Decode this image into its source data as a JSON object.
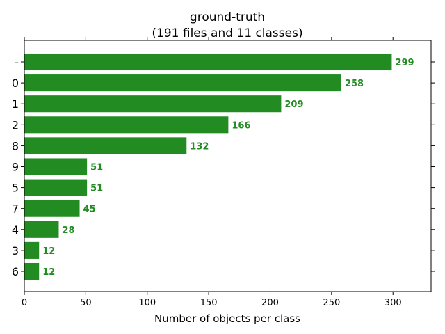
{
  "chart_data": {
    "type": "bar",
    "orientation": "horizontal",
    "title_line1": "ground-truth",
    "title_line2": "(191 files and 11 classes)",
    "xlabel": "Number of objects per class",
    "ylabel": "",
    "categories": [
      "-",
      "0",
      "1",
      "2",
      "8",
      "9",
      "5",
      "7",
      "4",
      "3",
      "6"
    ],
    "values": [
      299,
      258,
      209,
      166,
      132,
      51,
      51,
      45,
      28,
      12,
      12
    ],
    "xlim": [
      0,
      331
    ],
    "xticks": [
      0,
      50,
      100,
      150,
      200,
      250,
      300
    ],
    "bar_color": "#228b22",
    "label_color": "#228b22",
    "grid": false,
    "legend": "none"
  }
}
